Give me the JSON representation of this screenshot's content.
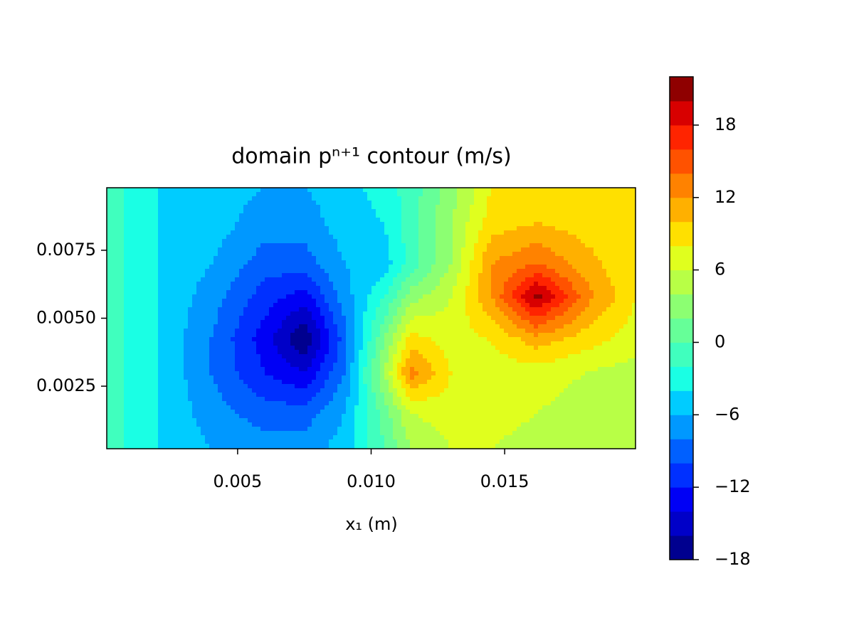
{
  "chart_data": {
    "type": "contour",
    "title": "domain pⁿ⁺¹ contour (m/s)",
    "xlabel": "x₁ (m)",
    "xlim": [
      0.0001,
      0.0199
    ],
    "ylim": [
      0.0002,
      0.0098
    ],
    "xticks": [
      0.005,
      {
        "value": 0.01,
        "label": "0.010"
      },
      0.015
    ],
    "yticks": [
      {
        "value": 0.0025,
        "label": "0.0025"
      },
      {
        "value": 0.005,
        "label": "0.0050"
      },
      0.0075
    ],
    "x": [
      0.0001,
      0.002,
      0.004,
      0.006,
      0.0075,
      0.009,
      0.0105,
      0.0115,
      0.013,
      0.0145,
      0.0162,
      0.018,
      0.0199
    ],
    "y": [
      0.0002,
      0.0015,
      0.003,
      0.0042,
      0.0058,
      0.007,
      0.0085,
      0.0098
    ],
    "z": [
      [
        -1,
        -4,
        -6,
        -7,
        -7,
        -5,
        0,
        4,
        6,
        6,
        5,
        5,
        5
      ],
      [
        -1,
        -4,
        -7,
        -9,
        -9,
        -6,
        1,
        6,
        7,
        7,
        6,
        5,
        5
      ],
      [
        -1,
        -4,
        -8,
        -12,
        -14,
        -8,
        4,
        13,
        8,
        7,
        7,
        6,
        5
      ],
      [
        -1,
        -4,
        -8,
        -13,
        -18,
        -9,
        2,
        9,
        7,
        8,
        11,
        9,
        7
      ],
      [
        -1,
        -4,
        -7,
        -11,
        -13,
        -7,
        -2,
        3,
        6,
        12,
        21,
        13,
        8
      ],
      [
        -1,
        -4,
        -6,
        -9,
        -9,
        -6,
        -5,
        -1,
        4,
        12,
        14,
        11,
        8
      ],
      [
        -1,
        -4,
        -5,
        -7,
        -7,
        -5,
        -4,
        -1,
        4,
        9,
        10,
        9,
        8
      ],
      [
        -1,
        -4,
        -5,
        -6,
        -6,
        -5,
        -3,
        -1,
        3,
        8,
        9,
        9,
        8
      ]
    ],
    "levels": [
      -18,
      -16,
      -14,
      -12,
      -10,
      -8,
      -6,
      -4,
      -2,
      0,
      2,
      4,
      6,
      8,
      10,
      12,
      14,
      16,
      18,
      20,
      22
    ],
    "colors": [
      "#00008f",
      "#0000c8",
      "#0000f5",
      "#0030ff",
      "#0060ff",
      "#0098ff",
      "#00ccff",
      "#1affe4",
      "#40ffbe",
      "#66ff98",
      "#8cff72",
      "#b8ff46",
      "#e0ff1e",
      "#ffe000",
      "#ffb000",
      "#ff8200",
      "#ff5200",
      "#ff2400",
      "#d80000",
      "#8f0000"
    ],
    "colorbar_ticks": [
      -18,
      -12,
      -6,
      0,
      6,
      12,
      18
    ]
  }
}
